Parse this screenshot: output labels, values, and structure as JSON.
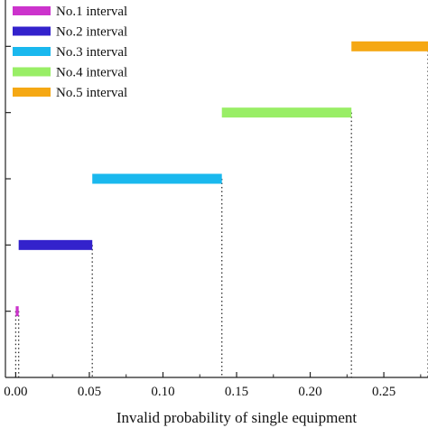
{
  "chart_data": {
    "type": "bar",
    "orientation": "horizontal-ranges",
    "xlabel": "Invalid probability of single equipment",
    "ylabel": "",
    "title": "",
    "xlim": [
      -0.007,
      0.28
    ],
    "ylim": [
      0,
      5.7
    ],
    "xticks": [
      0.0,
      0.05,
      0.1,
      0.15,
      0.2,
      0.25
    ],
    "xtick_labels": [
      "0.00",
      "0.05",
      "0.10",
      "0.15",
      "0.20",
      "0.25"
    ],
    "yticks": [
      1,
      2,
      3,
      4,
      5
    ],
    "legend_position": "top-left",
    "grid": false,
    "series": [
      {
        "name": "No.1 interval",
        "level": 1,
        "start": 0.0,
        "end": 0.002,
        "color": "#cc33cc"
      },
      {
        "name": "No.2 interval",
        "level": 2,
        "start": 0.002,
        "end": 0.052,
        "color": "#3322cc"
      },
      {
        "name": "No.3 interval",
        "level": 3,
        "start": 0.052,
        "end": 0.14,
        "color": "#1ab8ee"
      },
      {
        "name": "No.4 interval",
        "level": 4,
        "start": 0.14,
        "end": 0.228,
        "color": "#99ee66"
      },
      {
        "name": "No.5 interval",
        "level": 5,
        "start": 0.228,
        "end": 0.28,
        "color": "#f5a814"
      }
    ]
  }
}
